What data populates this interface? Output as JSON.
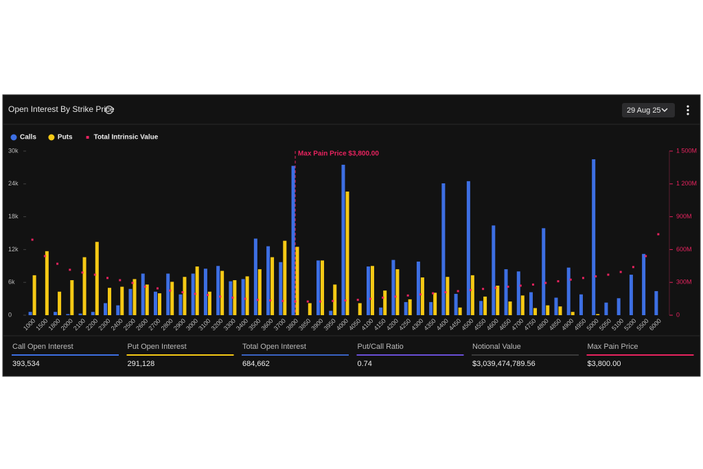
{
  "header": {
    "title": "Open Interest By Strike Price",
    "date_button": "29 Aug 25"
  },
  "chart_data": {
    "type": "bar",
    "categories": [
      "1000",
      "1500",
      "1800",
      "2000",
      "2100",
      "2200",
      "2300",
      "2400",
      "2500",
      "2600",
      "2700",
      "2800",
      "2900",
      "3000",
      "3100",
      "3200",
      "3300",
      "3400",
      "3500",
      "3600",
      "3700",
      "3800",
      "3850",
      "3900",
      "3950",
      "4000",
      "4050",
      "4100",
      "4150",
      "4200",
      "4250",
      "4300",
      "4350",
      "4400",
      "4450",
      "4500",
      "4550",
      "4600",
      "4650",
      "4700",
      "4750",
      "4800",
      "4850",
      "4900",
      "4950",
      "5000",
      "5050",
      "5100",
      "5200",
      "5500",
      "6000"
    ],
    "series": [
      {
        "name": "Calls",
        "type": "bar",
        "color": "#3d6fe3",
        "values": [
          0.6,
          0,
          0.6,
          0.2,
          0.3,
          0.6,
          2.2,
          1.8,
          4.8,
          7.6,
          4.3,
          7.6,
          3.8,
          7.6,
          8.5,
          9,
          6.2,
          6.6,
          14,
          12.6,
          9.7,
          27.3,
          0,
          10,
          0.8,
          27.5,
          0,
          8.9,
          1.4,
          10.1,
          2.4,
          9.8,
          2.4,
          24.1,
          3.9,
          24.5,
          2.6,
          16.4,
          8.4,
          8,
          4.2,
          15.9,
          3.2,
          8.7,
          3.8,
          28.5,
          2.3,
          3.1,
          7.4,
          11.2,
          4.4
        ]
      },
      {
        "name": "Puts",
        "type": "bar",
        "color": "#f6c915",
        "values": [
          7.3,
          11.7,
          4.3,
          6.4,
          10.6,
          13.4,
          5,
          5.2,
          6.6,
          5.6,
          4,
          6.1,
          7,
          8.9,
          4.3,
          8.1,
          6.4,
          7.1,
          8.4,
          10.6,
          13.6,
          12.5,
          2.2,
          10,
          5.6,
          22.6,
          2.2,
          9,
          4.5,
          8.4,
          2.9,
          6.9,
          4.1,
          7,
          1.4,
          7.3,
          3.4,
          5.4,
          2.5,
          3.6,
          1.3,
          1.8,
          1.6,
          0.6,
          0,
          0.2,
          0,
          0,
          0,
          0,
          0
        ]
      },
      {
        "name": "Total Intrinsic Value",
        "type": "scatter",
        "axis": "y2",
        "color": "#e8235f",
        "values": [
          690,
          540,
          470,
          415,
          390,
          370,
          340,
          320,
          295,
          260,
          245,
          225,
          210,
          195,
          185,
          170,
          160,
          150,
          140,
          135,
          130,
          125,
          125,
          125,
          130,
          135,
          140,
          150,
          160,
          170,
          180,
          190,
          200,
          210,
          220,
          230,
          240,
          250,
          260,
          270,
          280,
          295,
          310,
          325,
          340,
          355,
          370,
          395,
          440,
          540,
          740
        ]
      }
    ],
    "ylim": [
      0,
      30
    ],
    "yticks": [
      0,
      {
        "value": 6,
        "label": "6k"
      },
      {
        "value": 12,
        "label": "12k"
      },
      {
        "value": 18,
        "label": "18k"
      },
      {
        "value": 24,
        "label": "24k"
      },
      {
        "value": 30,
        "label": "30k"
      }
    ],
    "y2lim": [
      0,
      1500
    ],
    "y2ticks": [
      0,
      {
        "value": 300,
        "label": "300M"
      },
      {
        "value": 600,
        "label": "600M"
      },
      {
        "value": 900,
        "label": "900M"
      },
      {
        "value": 1200,
        "label": "1 200M"
      },
      {
        "value": 1500,
        "label": "1 500M"
      }
    ],
    "annotation": {
      "text": "Max Pain Price $3,800.00",
      "category": "3800",
      "color": "#e8235f"
    },
    "legend": "top-left"
  },
  "stats": [
    {
      "label": "Call Open Interest",
      "value": "393,534",
      "color": "#3d6fe3"
    },
    {
      "label": "Put Open Interest",
      "value": "291,128",
      "color": "#f6c915"
    },
    {
      "label": "Total Open Interest",
      "value": "684,662",
      "color": "#3a63c4"
    },
    {
      "label": "Put/Call Ratio",
      "value": "0.74",
      "color": "#6a4fd8"
    },
    {
      "label": "Notional Value",
      "value": "$3,039,474,789.56",
      "color": "#3a3a3a"
    },
    {
      "label": "Max Pain Price",
      "value": "$3,800.00",
      "color": "#e8235f"
    }
  ]
}
